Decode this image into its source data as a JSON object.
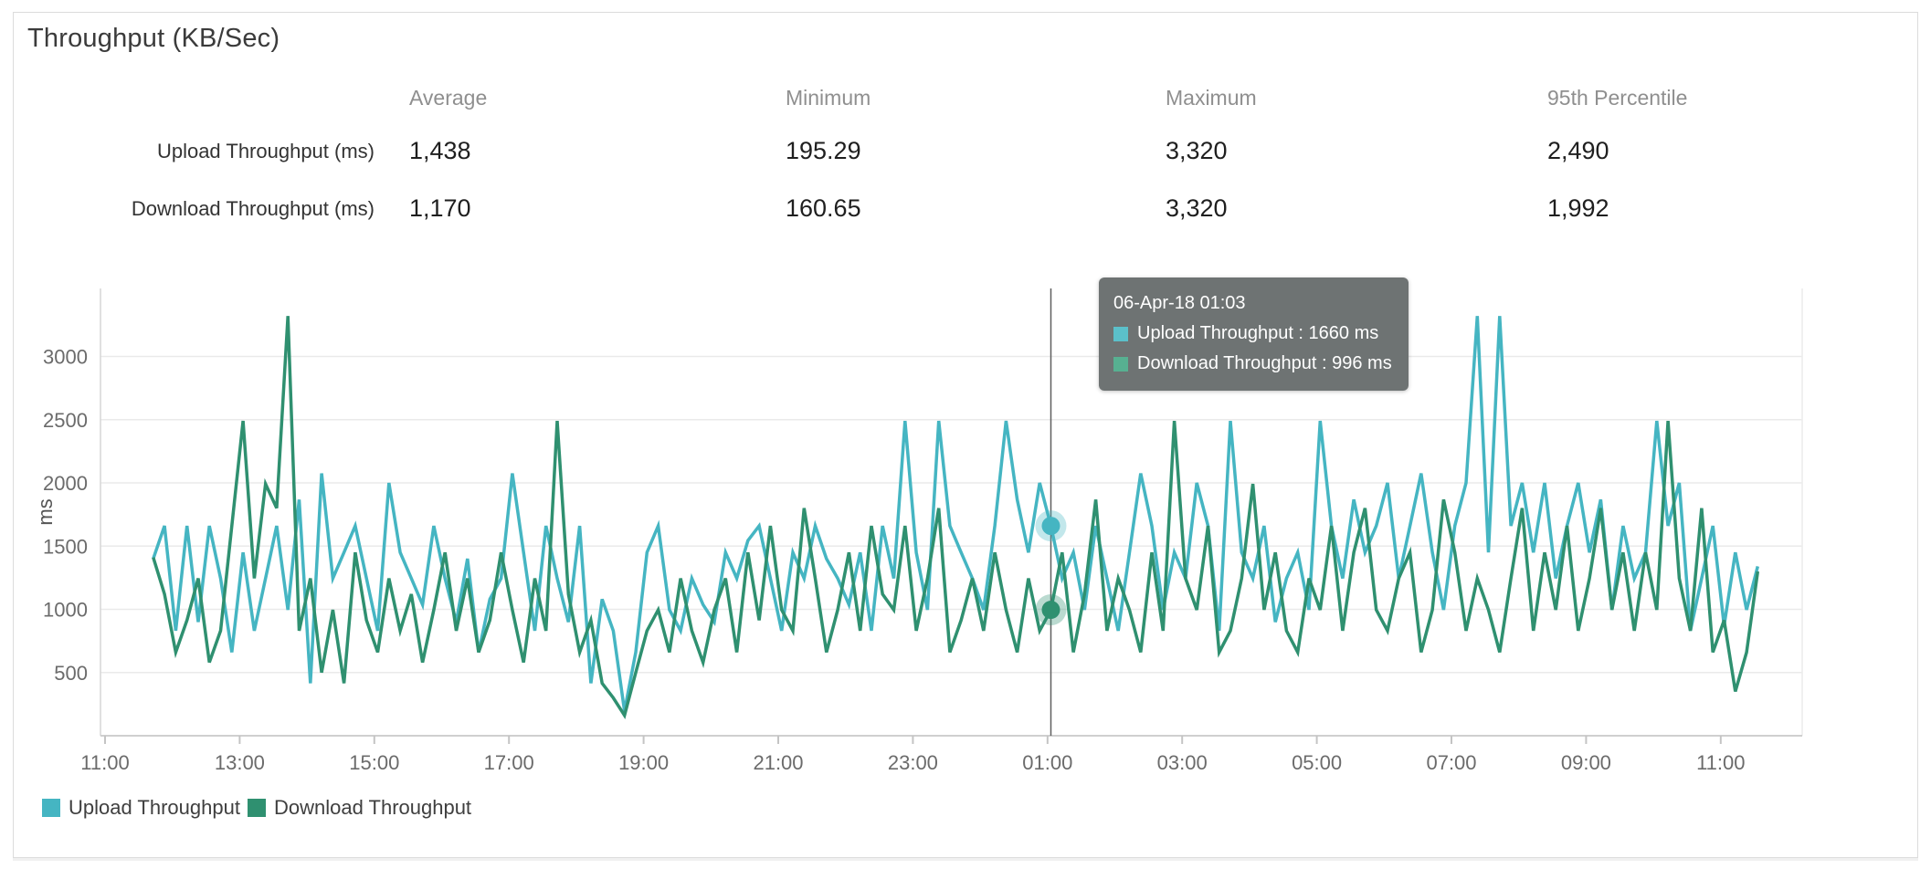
{
  "card": {
    "title": "Throughput (KB/Sec)"
  },
  "stats": {
    "columns": [
      "Average",
      "Minimum",
      "Maximum",
      "95th Percentile"
    ],
    "rows": [
      {
        "label": "Upload Throughput (ms)",
        "values": [
          "1,438",
          "195.29",
          "3,320",
          "2,490"
        ]
      },
      {
        "label": "Download Throughput (ms)",
        "values": [
          "1,170",
          "160.65",
          "3,320",
          "1,992"
        ]
      }
    ]
  },
  "legend": [
    {
      "label": "Upload Throughput",
      "color": "#45b5c2"
    },
    {
      "label": "Download Throughput",
      "color": "#2f9070"
    }
  ],
  "tooltip": {
    "title": "06-Apr-18 01:03",
    "entries": [
      {
        "text": "Upload Throughput : 1660 ms",
        "color": "#5bc0ca"
      },
      {
        "text": "Download Throughput : 996 ms",
        "color": "#57b091"
      }
    ]
  },
  "chart_data": {
    "type": "line",
    "title": "Throughput (KB/Sec)",
    "xlabel": "",
    "ylabel": "ms",
    "x_start": "11:43",
    "x_step_minutes": 10,
    "x_tick_labels": [
      "11:00",
      "13:00",
      "15:00",
      "17:00",
      "19:00",
      "21:00",
      "23:00",
      "01:00",
      "03:00",
      "05:00",
      "07:00",
      "09:00",
      "11:00"
    ],
    "y_ticks": [
      500,
      1000,
      1500,
      2000,
      2500,
      3000
    ],
    "ylim": [
      0,
      3540
    ],
    "grid": "horizontal",
    "legend_position": "bottom-left",
    "highlight": {
      "index": 80,
      "time": "06-Apr-18 01:03"
    },
    "series": [
      {
        "name": "Upload Throughput",
        "unit": "ms",
        "color": "#45b5c2",
        "values": [
          1400,
          1660,
          830,
          1660,
          900,
          1660,
          1245,
          660,
          1450,
          830,
          1245,
          1660,
          996,
          1868,
          415,
          2075,
          1245,
          1450,
          1660,
          1245,
          830,
          2000,
          1450,
          1245,
          1037,
          1660,
          1245,
          900,
          1400,
          660,
          1080,
          1245,
          2075,
          1450,
          830,
          1660,
          1245,
          900,
          1660,
          415,
          1080,
          830,
          195.29,
          660,
          1450,
          1660,
          996,
          830,
          1245,
          1037,
          900,
          1450,
          1245,
          1544,
          1660,
          1245,
          830,
          1450,
          1245,
          1660,
          1400,
          1245,
          1037,
          1450,
          830,
          1660,
          1245,
          2490,
          1450,
          996,
          2490,
          1660,
          1450,
          1245,
          996,
          1660,
          2490,
          1868,
          1450,
          2000,
          1660,
          1245,
          1450,
          996,
          1660,
          1245,
          830,
          1450,
          2075,
          1660,
          996,
          1450,
          1245,
          2000,
          1660,
          830,
          2490,
          1450,
          1245,
          1660,
          900,
          1245,
          1450,
          996,
          2490,
          1660,
          1245,
          1868,
          1450,
          1660,
          2000,
          1245,
          1660,
          2075,
          1450,
          996,
          1660,
          2000,
          3320,
          1450,
          3320,
          1660,
          2000,
          1450,
          2000,
          1245,
          1660,
          2000,
          1450,
          1868,
          996,
          1660,
          1245,
          1450,
          2490,
          1660,
          2000,
          830,
          1245,
          1660,
          870,
          1450,
          996,
          1340
        ]
      },
      {
        "name": "Download Throughput",
        "unit": "ms",
        "color": "#2f9070",
        "values": [
          1410,
          1120,
          660,
          913,
          1245,
          580,
          830,
          1660,
          2490,
          1245,
          1992,
          1800,
          3320,
          830,
          1245,
          500,
          996,
          415,
          1450,
          913,
          660,
          1245,
          830,
          1120,
          580,
          996,
          1450,
          830,
          1245,
          660,
          913,
          1450,
          996,
          580,
          1245,
          830,
          2490,
          1120,
          660,
          913,
          415,
          300,
          160.65,
          500,
          830,
          996,
          660,
          1245,
          830,
          580,
          996,
          1245,
          660,
          1450,
          913,
          1660,
          996,
          830,
          1800,
          1245,
          660,
          996,
          1450,
          830,
          1660,
          1120,
          996,
          1660,
          830,
          1245,
          1800,
          660,
          913,
          1245,
          830,
          1450,
          996,
          660,
          1245,
          830,
          996,
          1450,
          660,
          1120,
          1868,
          830,
          1245,
          996,
          660,
          1450,
          830,
          2490,
          1245,
          996,
          1660,
          660,
          830,
          1245,
          1992,
          996,
          1450,
          830,
          660,
          1245,
          996,
          1660,
          830,
          1450,
          1800,
          996,
          830,
          1245,
          1450,
          660,
          996,
          1868,
          1450,
          830,
          1245,
          996,
          660,
          1245,
          1800,
          830,
          1450,
          996,
          1660,
          830,
          1245,
          1800,
          996,
          1450,
          830,
          1450,
          996,
          2490,
          1245,
          830,
          1800,
          660,
          913,
          350,
          660,
          1300
        ]
      }
    ]
  }
}
